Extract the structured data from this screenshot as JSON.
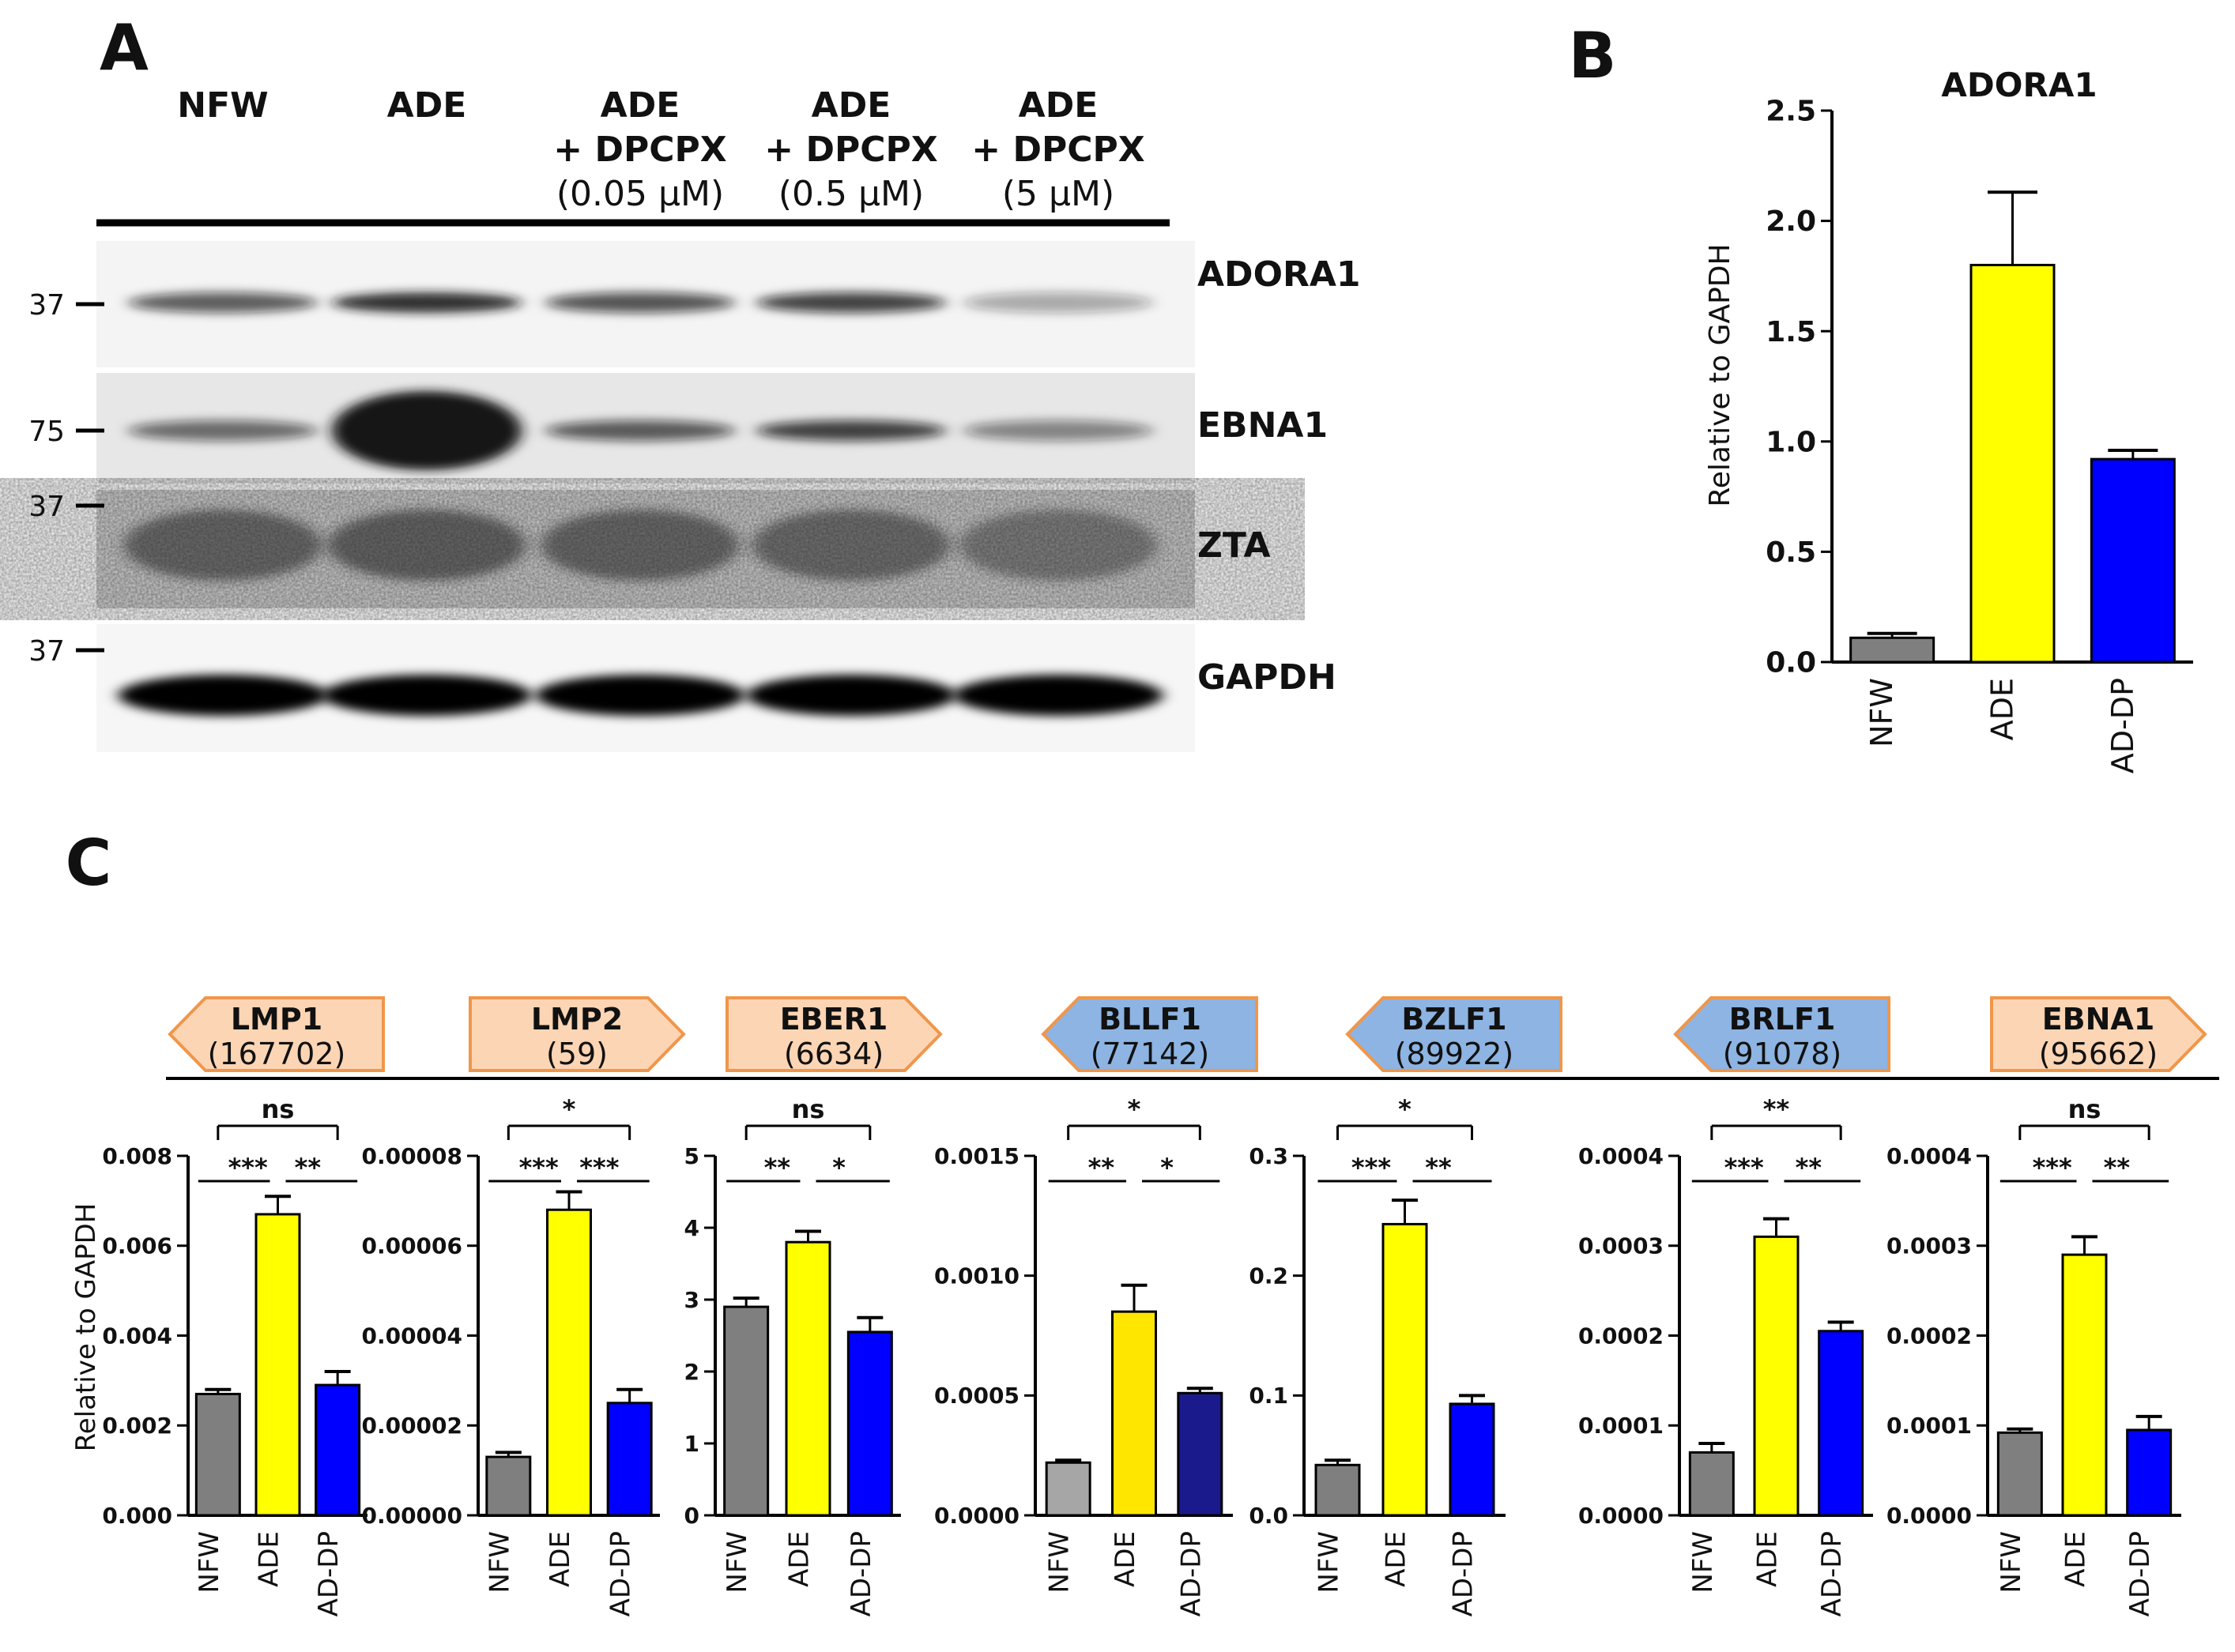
{
  "colors": {
    "grey": "#7f7f7f",
    "yellow": "#ffff00",
    "blue": "#0000ff",
    "light_grey": "#a6a6a6",
    "gold": "#ffe600",
    "navy": "#1a1a8c",
    "orange_fill": "#fcd5b4",
    "orange_stroke": "#f0964a",
    "blue_fill": "#8db4e2",
    "blue_stroke": "#f0964a"
  },
  "panels": {
    "A": {
      "letter": "A",
      "lanes": [
        {
          "line1": "NFW",
          "line2": "",
          "line3": ""
        },
        {
          "line1": "ADE",
          "line2": "",
          "line3": ""
        },
        {
          "line1": "ADE",
          "line2": "+ DPCPX",
          "line3": "(0.05 µM)"
        },
        {
          "line1": "ADE",
          "line2": "+ DPCPX",
          "line3": "(0.5 µM)"
        },
        {
          "line1": "ADE",
          "line2": "+ DPCPX",
          "line3": "(5 µM)"
        }
      ],
      "blots": [
        {
          "label": "ADORA1",
          "marker": "37",
          "intensity": [
            0.55,
            0.85,
            0.6,
            0.7,
            0.12
          ]
        },
        {
          "label": "EBNA1",
          "marker": "75",
          "intensity": [
            0.45,
            1.0,
            0.55,
            0.7,
            0.3
          ]
        },
        {
          "label": "ZTA",
          "marker": "37",
          "intensity": [
            0.6,
            0.65,
            0.6,
            0.55,
            0.4
          ]
        },
        {
          "label": "GAPDH",
          "marker": "37",
          "intensity": [
            1.0,
            1.0,
            1.0,
            1.0,
            1.0
          ]
        }
      ]
    },
    "B": {
      "letter": "B"
    },
    "C": {
      "letter": "C"
    }
  },
  "chart_data": [
    {
      "panel": "B",
      "type": "bar",
      "title": "ADORA1",
      "ylabel": "Relative to GAPDH",
      "categories": [
        "NFW",
        "ADE",
        "AD-DP"
      ],
      "values": [
        0.11,
        1.8,
        0.92
      ],
      "errors": [
        0.02,
        0.33,
        0.04
      ],
      "ylim": [
        0,
        2.5
      ],
      "yticks": [
        "0.0",
        "0.5",
        "1.0",
        "1.5",
        "2.0",
        "2.5"
      ],
      "bar_colors": [
        "#7f7f7f",
        "#ffff00",
        "#0000ff"
      ]
    },
    {
      "panel": "C",
      "type": "bar",
      "gene": "LMP1",
      "gene_id": "(167702)",
      "arrow": "left",
      "arrow_color": "orange",
      "ylabel": "Relative to GAPDH",
      "categories": [
        "NFW",
        "ADE",
        "AD-DP"
      ],
      "values": [
        0.0027,
        0.0067,
        0.0029
      ],
      "errors": [
        0.0001,
        0.0004,
        0.0003
      ],
      "ylim": [
        0,
        0.008
      ],
      "yticks": [
        "0.000",
        "0.002",
        "0.004",
        "0.006",
        "0.008"
      ],
      "bar_colors": [
        "#7f7f7f",
        "#ffff00",
        "#0000ff"
      ],
      "sig": {
        "top": "ns",
        "left": "***",
        "right": "**"
      }
    },
    {
      "panel": "C",
      "type": "bar",
      "gene": "LMP2",
      "gene_id": "(59)",
      "arrow": "right",
      "arrow_color": "orange",
      "categories": [
        "NFW",
        "ADE",
        "AD-DP"
      ],
      "values": [
        1.3e-05,
        6.8e-05,
        2.5e-05
      ],
      "errors": [
        1e-06,
        4e-06,
        3e-06
      ],
      "ylim": [
        0,
        8e-05
      ],
      "yticks": [
        "0.00000",
        "0.00002",
        "0.00004",
        "0.00006",
        "0.00008"
      ],
      "bar_colors": [
        "#7f7f7f",
        "#ffff00",
        "#0000ff"
      ],
      "sig": {
        "top": "*",
        "left": "***",
        "right": "***"
      }
    },
    {
      "panel": "C",
      "type": "bar",
      "gene": "EBER1",
      "gene_id": "(6634)",
      "arrow": "right",
      "arrow_color": "orange",
      "categories": [
        "NFW",
        "ADE",
        "AD-DP"
      ],
      "values": [
        2.9,
        3.8,
        2.55
      ],
      "errors": [
        0.12,
        0.15,
        0.2
      ],
      "ylim": [
        0,
        5
      ],
      "yticks": [
        "0",
        "1",
        "2",
        "3",
        "4",
        "5"
      ],
      "bar_colors": [
        "#7f7f7f",
        "#ffff00",
        "#0000ff"
      ],
      "sig": {
        "top": "ns",
        "left": "**",
        "right": "*"
      }
    },
    {
      "panel": "C",
      "type": "bar",
      "gene": "BLLF1",
      "gene_id": "(77142)",
      "arrow": "left",
      "arrow_color": "blue",
      "categories": [
        "NFW",
        "ADE",
        "AD-DP"
      ],
      "values": [
        0.00022,
        0.00085,
        0.00051
      ],
      "errors": [
        1e-05,
        0.00011,
        2e-05
      ],
      "ylim": [
        0,
        0.0015
      ],
      "yticks": [
        "0.0000",
        "0.0005",
        "0.0010",
        "0.0015"
      ],
      "bar_colors": [
        "#a6a6a6",
        "#ffe600",
        "#1a1a8c"
      ],
      "sig": {
        "top": "*",
        "left": "**",
        "right": "*"
      }
    },
    {
      "panel": "C",
      "type": "bar",
      "gene": "BZLF1",
      "gene_id": "(89922)",
      "arrow": "left",
      "arrow_color": "blue",
      "categories": [
        "NFW",
        "ADE",
        "AD-DP"
      ],
      "values": [
        0.042,
        0.243,
        0.093
      ],
      "errors": [
        0.004,
        0.02,
        0.007
      ],
      "ylim": [
        0,
        0.3
      ],
      "yticks": [
        "0.0",
        "0.1",
        "0.2",
        "0.3"
      ],
      "bar_colors": [
        "#7f7f7f",
        "#ffff00",
        "#0000ff"
      ],
      "sig": {
        "top": "*",
        "left": "***",
        "right": "**"
      }
    },
    {
      "panel": "C",
      "type": "bar",
      "gene": "BRLF1",
      "gene_id": "(91078)",
      "arrow": "left",
      "arrow_color": "blue",
      "categories": [
        "NFW",
        "ADE",
        "AD-DP"
      ],
      "values": [
        7e-05,
        0.00031,
        0.000205
      ],
      "errors": [
        1e-05,
        2e-05,
        1e-05
      ],
      "ylim": [
        0,
        0.0004
      ],
      "yticks": [
        "0.0000",
        "0.0001",
        "0.0002",
        "0.0003",
        "0.0004"
      ],
      "bar_colors": [
        "#7f7f7f",
        "#ffff00",
        "#0000ff"
      ],
      "sig": {
        "top": "**",
        "left": "***",
        "right": "**"
      }
    },
    {
      "panel": "C",
      "type": "bar",
      "gene": "EBNA1",
      "gene_id": "(95662)",
      "arrow": "right",
      "arrow_color": "orange",
      "categories": [
        "NFW",
        "ADE",
        "AD-DP"
      ],
      "values": [
        9.2e-05,
        0.00029,
        9.5e-05
      ],
      "errors": [
        4e-06,
        2e-05,
        1.5e-05
      ],
      "ylim": [
        0,
        0.0004
      ],
      "yticks": [
        "0.0000",
        "0.0001",
        "0.0002",
        "0.0003",
        "0.0004"
      ],
      "bar_colors": [
        "#7f7f7f",
        "#ffff00",
        "#0000ff"
      ],
      "sig": {
        "top": "ns",
        "left": "***",
        "right": "**"
      }
    }
  ]
}
